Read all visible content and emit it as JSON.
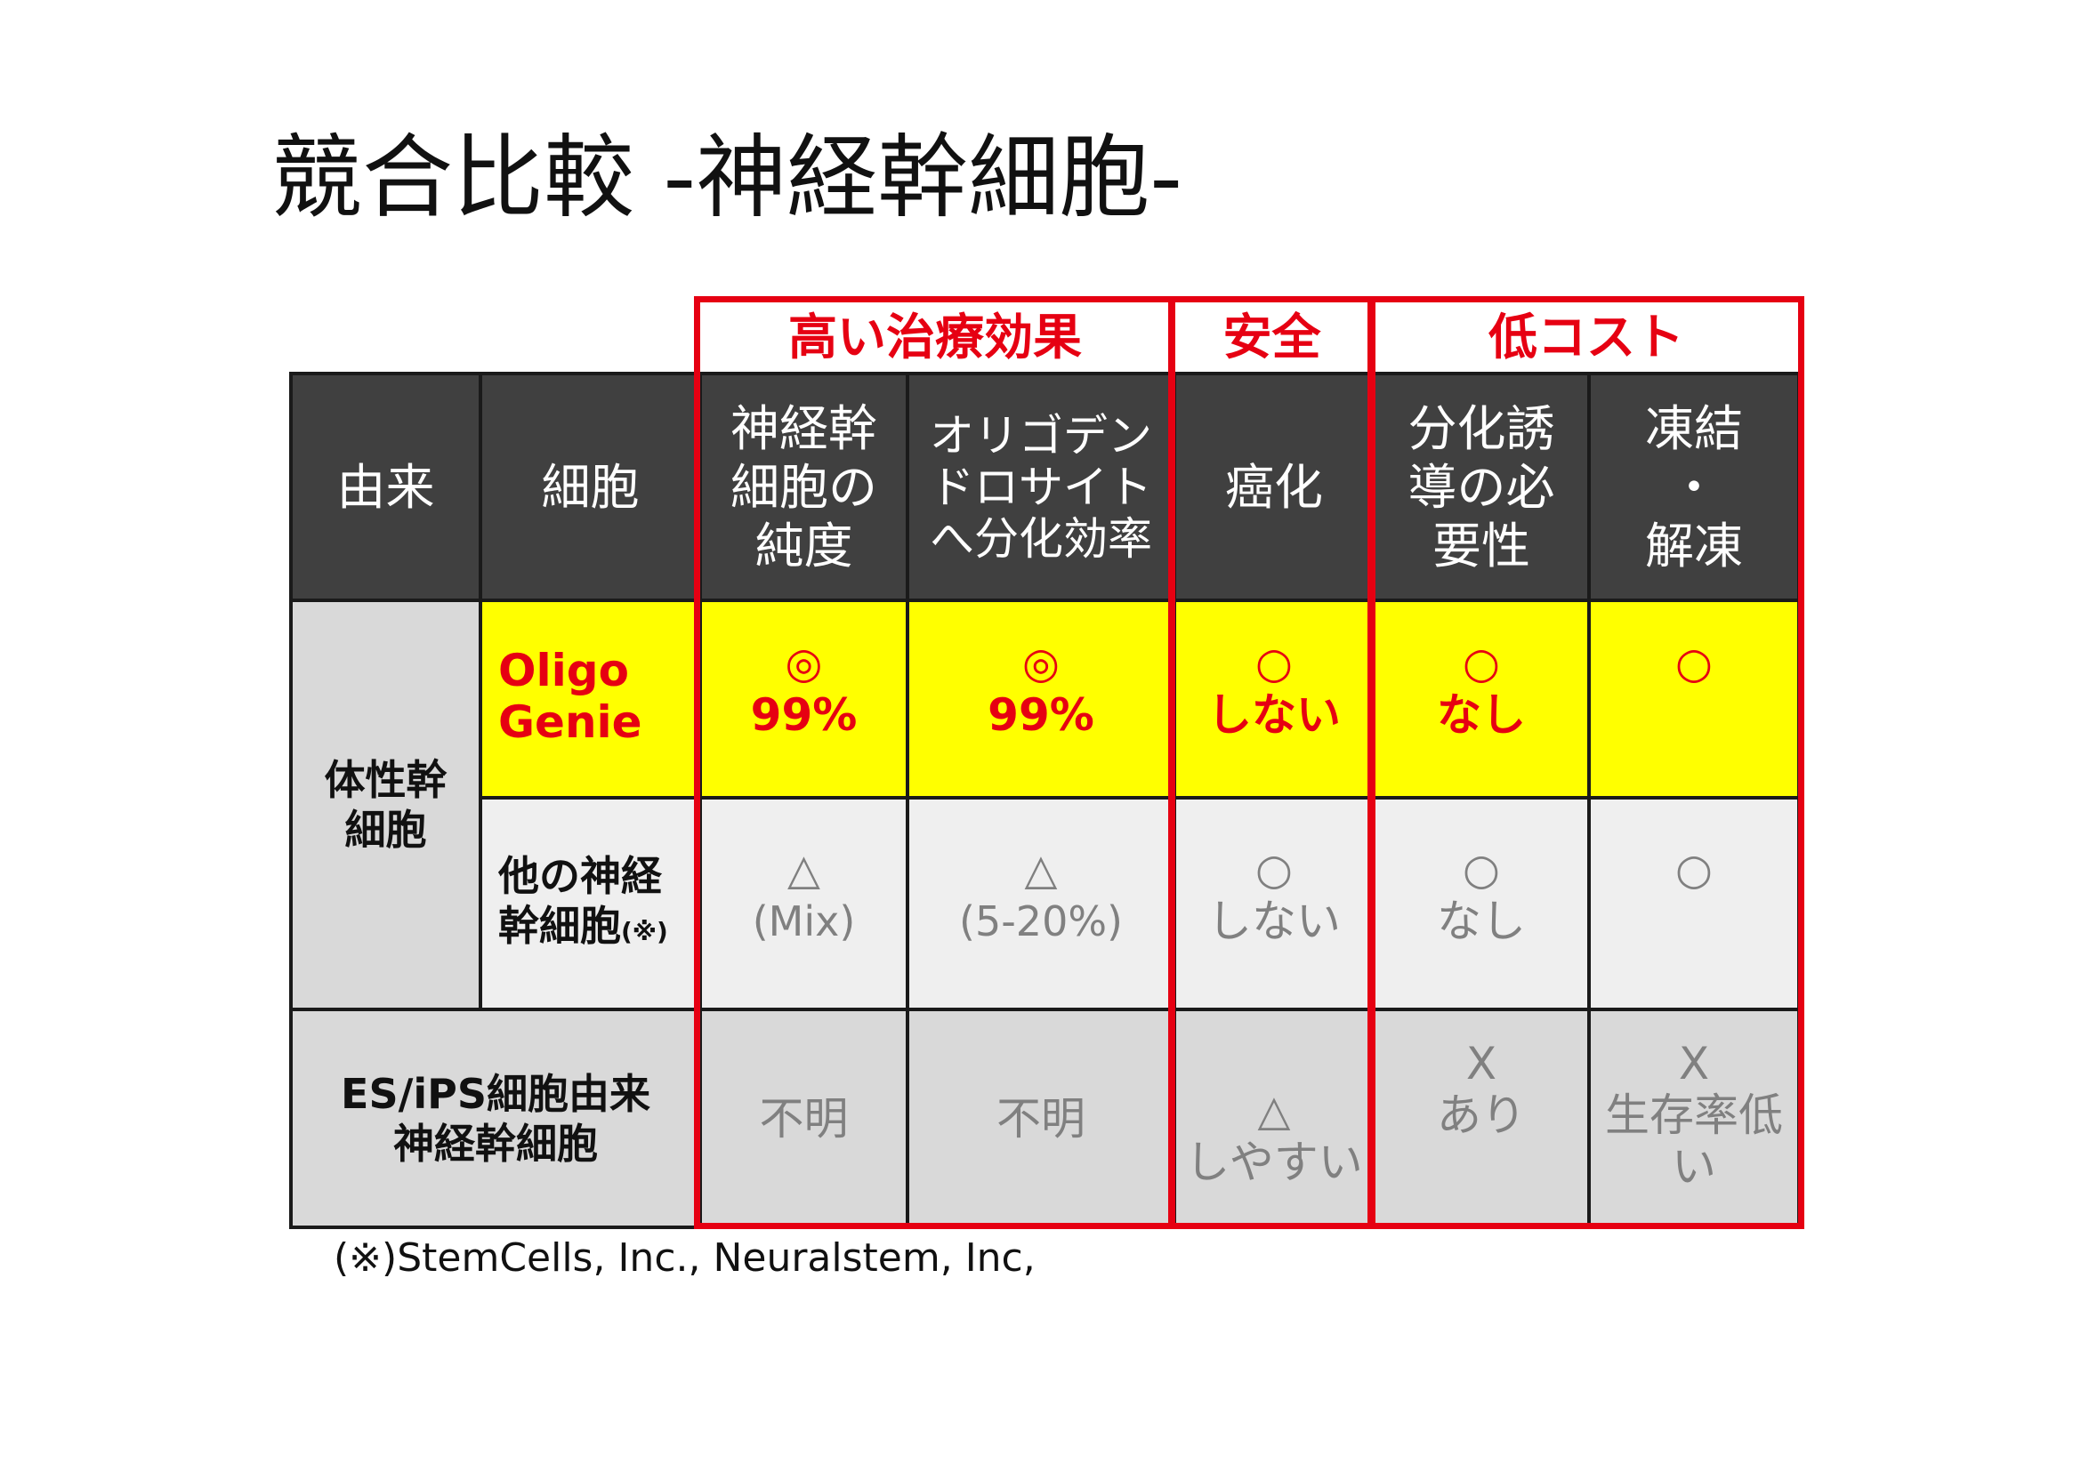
{
  "title": "競合比較 -神経幹細胞-",
  "groups": {
    "efficacy": "高い治療効果",
    "safety": "安全",
    "cost": "低コスト"
  },
  "headers": {
    "origin": "由来",
    "cell": "細胞",
    "purity": [
      "神経幹",
      "細胞の",
      "純度"
    ],
    "oligo_diff": [
      "オリゴデン",
      "ドロサイト",
      "へ分化効率"
    ],
    "cancer": "癌化",
    "induction": [
      "分化誘",
      "導の必",
      "要性"
    ],
    "freeze": [
      "凍結",
      "・",
      "解凍"
    ]
  },
  "rows": {
    "somatic_label": [
      "体性幹",
      "細胞"
    ],
    "oligogenie": {
      "name": [
        "Oligo",
        "Genie"
      ],
      "purity": [
        "◎",
        "99%"
      ],
      "oligo_diff": [
        "◎",
        "99%"
      ],
      "cancer": [
        "○",
        "しない"
      ],
      "induction": [
        "○",
        "なし"
      ],
      "freeze": [
        "○"
      ]
    },
    "other_nsc": {
      "name": [
        "他の神経",
        "幹細胞"
      ],
      "name_note": "(※)",
      "purity": [
        "△",
        "(Mix)"
      ],
      "oligo_diff": [
        "△",
        "(5-20%)"
      ],
      "cancer": [
        "○",
        "しない"
      ],
      "induction": [
        "○",
        "なし"
      ],
      "freeze": [
        "○"
      ]
    },
    "es_ips": {
      "name": [
        "ES/iPS細胞由来",
        "神経幹細胞"
      ],
      "purity": "不明",
      "oligo_diff": "不明",
      "cancer": [
        "△",
        "しやすい"
      ],
      "induction": [
        "X",
        "あり"
      ],
      "freeze": [
        "X",
        "生存率低",
        "い"
      ]
    }
  },
  "footnote": "(※)StemCells, Inc., Neuralstem, Inc,",
  "colors": {
    "header_bg": "#404040",
    "highlight": "#ffff00",
    "accent_red": "#e60012",
    "row_light": "#efefef",
    "row_grey": "#d9d9d9"
  }
}
